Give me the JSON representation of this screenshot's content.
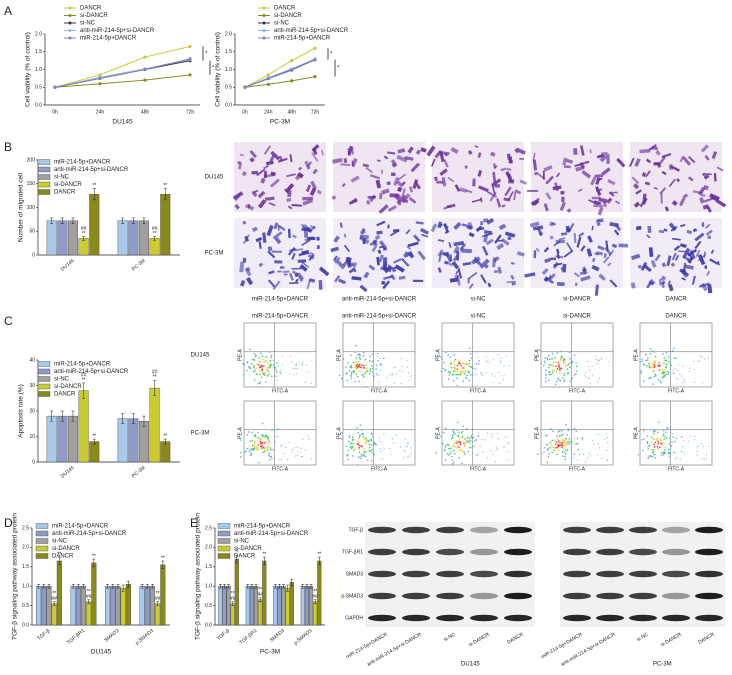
{
  "panels": {
    "letters": [
      "A",
      "B",
      "C",
      "D",
      "E"
    ]
  },
  "chart_data": [
    {
      "type": "line",
      "x_label": "DU145",
      "y_label": "Cell viability (% of control)",
      "categories": [
        "0h",
        "24h",
        "48h",
        "72h"
      ],
      "ylim": [
        0,
        2
      ],
      "yticks": [
        {
          "value": 0,
          "label": "0.0"
        },
        {
          "value": 0.5,
          "label": "0.5"
        },
        {
          "value": 1,
          "label": "1.0"
        },
        {
          "value": 1.5,
          "label": "1.5"
        },
        {
          "value": 2,
          "label": "2.0"
        }
      ],
      "series": [
        {
          "name": "DANCR",
          "color": "#c8c83c",
          "values": [
            0.5,
            0.85,
            1.35,
            1.65
          ]
        },
        {
          "name": "si-DANCR",
          "color": "#8c8c28",
          "values": [
            0.5,
            0.6,
            0.7,
            0.85
          ]
        },
        {
          "name": "si-NC",
          "color": "#333333",
          "values": [
            0.5,
            0.75,
            1.0,
            1.25
          ]
        },
        {
          "name": "anti-miR-214-5p+si-DANCR",
          "color": "#8fb8e8",
          "values": [
            0.5,
            0.78,
            1.02,
            1.28
          ]
        },
        {
          "name": "miR-214-5p+DANCR",
          "color": "#8080c0",
          "values": [
            0.5,
            0.75,
            1.0,
            1.3
          ]
        }
      ],
      "annotations": [
        "*",
        "*"
      ]
    },
    {
      "type": "line",
      "x_label": "PC-3M",
      "y_label": "Cell viability (% of control)",
      "categories": [
        "0h",
        "24h",
        "48h",
        "72h"
      ],
      "ylim": [
        0,
        2
      ],
      "yticks": [
        {
          "value": 0,
          "label": "0.0"
        },
        {
          "value": 0.5,
          "label": "0.5"
        },
        {
          "value": 1,
          "label": "1.0"
        },
        {
          "value": 1.5,
          "label": "1.5"
        },
        {
          "value": 2,
          "label": "2.0"
        }
      ],
      "series": [
        {
          "name": "DANCR",
          "color": "#c8c83c",
          "values": [
            0.5,
            0.85,
            1.25,
            1.6
          ]
        },
        {
          "name": "si-DANCR",
          "color": "#8c8c28",
          "values": [
            0.5,
            0.58,
            0.68,
            0.8
          ]
        },
        {
          "name": "si-NC",
          "color": "#333333",
          "values": [
            0.5,
            0.75,
            1.0,
            1.28
          ]
        },
        {
          "name": "anti-miR-214-5p+si-DANCR",
          "color": "#8fb8e8",
          "values": [
            0.5,
            0.77,
            1.02,
            1.3
          ]
        },
        {
          "name": "miR-214-5p+DANCR",
          "color": "#8080c0",
          "values": [
            0.5,
            0.74,
            0.98,
            1.27
          ]
        }
      ],
      "annotations": [
        "*",
        "*"
      ]
    },
    {
      "type": "bar",
      "y_label": "Number of migrated cell",
      "categories": [
        "DU145",
        "PC-3M"
      ],
      "ylim": [
        0,
        200
      ],
      "yticks": [
        0,
        50,
        100,
        150,
        200
      ],
      "series": [
        {
          "name": "miR-214-5p+DANCR",
          "color": "#a8c8ec",
          "values": [
            72,
            72
          ],
          "errors": [
            6,
            6
          ]
        },
        {
          "name": "anti-miR-214-5p+si-DANCR",
          "color": "#8e9cc8",
          "values": [
            72,
            72
          ],
          "errors": [
            6,
            6
          ]
        },
        {
          "name": "si-NC",
          "color": "#a0a0a0",
          "values": [
            72,
            72
          ],
          "errors": [
            6,
            6
          ]
        },
        {
          "name": "si-DANCR",
          "color": "#cccc30",
          "values": [
            35,
            35
          ],
          "errors": [
            4,
            4
          ],
          "sig": [
            [
              "##",
              "**"
            ],
            [
              "##",
              "**"
            ]
          ]
        },
        {
          "name": "DANCR",
          "color": "#8a8a1a",
          "values": [
            128,
            128
          ],
          "errors": [
            12,
            12
          ],
          "sig": [
            [
              "**"
            ],
            [
              "**"
            ]
          ]
        }
      ]
    },
    {
      "type": "bar",
      "y_label": "Apoptosis rate (%)",
      "categories": [
        "DU145",
        "PC-3M"
      ],
      "ylim": [
        0,
        40
      ],
      "yticks": [
        0,
        10,
        20,
        30,
        40
      ],
      "series": [
        {
          "name": "miR-214-5p+DANCR",
          "color": "#a8c8ec",
          "values": [
            18,
            17
          ],
          "errors": [
            2,
            2
          ]
        },
        {
          "name": "anti-miR-214-5p+si-DANCR",
          "color": "#8e9cc8",
          "values": [
            18,
            17
          ],
          "errors": [
            2,
            2
          ]
        },
        {
          "name": "si-NC",
          "color": "#a0a0a0",
          "values": [
            18,
            16
          ],
          "errors": [
            2,
            2
          ]
        },
        {
          "name": "si-DANCR",
          "color": "#cccc30",
          "values": [
            28,
            29
          ],
          "errors": [
            3,
            3
          ],
          "sig": [
            [
              "##",
              "**"
            ],
            [
              "##",
              "**"
            ]
          ]
        },
        {
          "name": "DANCR",
          "color": "#8a8a1a",
          "values": [
            8,
            8
          ],
          "errors": [
            1,
            1
          ],
          "sig": [
            [
              "**"
            ],
            [
              "**"
            ]
          ]
        }
      ]
    },
    {
      "type": "bar",
      "x_label": "DU145",
      "y_label": "TGF-β signaling pathway associated protein",
      "categories": [
        "TGF-β",
        "TGF-βR1",
        "SMAD3",
        "p-SMAD3"
      ],
      "ylim": [
        0,
        2.5
      ],
      "yticks": [
        {
          "value": 0,
          "label": "0.0"
        },
        {
          "value": 0.5,
          "label": "0.5"
        },
        {
          "value": 1,
          "label": "1.0"
        },
        {
          "value": 1.5,
          "label": "1.5"
        },
        {
          "value": 2,
          "label": "2.0"
        },
        {
          "value": 2.5,
          "label": "2.5"
        }
      ],
      "series": [
        {
          "name": "miR-214-5p+DANCR",
          "color": "#a8c8ec",
          "values": [
            1,
            1,
            1,
            1
          ],
          "errors": [
            0.05,
            0.05,
            0.05,
            0.05
          ]
        },
        {
          "name": "anti-miR-214-5p+si-DANCR",
          "color": "#8e9cc8",
          "values": [
            1,
            1,
            1,
            1
          ],
          "errors": [
            0.05,
            0.05,
            0.05,
            0.05
          ]
        },
        {
          "name": "si-NC",
          "color": "#a0a0a0",
          "values": [
            1,
            1,
            1,
            1
          ],
          "errors": [
            0.05,
            0.05,
            0.05,
            0.05
          ]
        },
        {
          "name": "si-DANCR",
          "color": "#cccc30",
          "values": [
            0.55,
            0.6,
            0.95,
            0.55
          ],
          "errors": [
            0.05,
            0.05,
            0.08,
            0.05
          ],
          "sig": [
            [
              "**",
              "##"
            ],
            [
              "**",
              "##"
            ],
            null,
            [
              "**",
              "##"
            ]
          ]
        },
        {
          "name": "DANCR",
          "color": "#8a8a1a",
          "values": [
            1.65,
            1.6,
            1.05,
            1.55
          ],
          "errors": [
            0.1,
            0.1,
            0.08,
            0.1
          ],
          "sig": [
            [
              "**"
            ],
            [
              "**"
            ],
            null,
            [
              "**"
            ]
          ]
        }
      ]
    },
    {
      "type": "bar",
      "x_label": "PC-3M",
      "y_label": "TGF-β signaling pathway associated protein",
      "categories": [
        "TGF-β",
        "TGF-βR1",
        "SMAD3",
        "p-SMAD3"
      ],
      "ylim": [
        0,
        2.5
      ],
      "yticks": [
        {
          "value": 0,
          "label": "0.0"
        },
        {
          "value": 0.5,
          "label": "0.5"
        },
        {
          "value": 1,
          "label": "1.0"
        },
        {
          "value": 1.5,
          "label": "1.5"
        },
        {
          "value": 2,
          "label": "2.0"
        },
        {
          "value": 2.5,
          "label": "2.5"
        }
      ],
      "series": [
        {
          "name": "miR-214-5p+DANCR",
          "color": "#a8c8ec",
          "values": [
            1,
            1,
            1,
            1
          ],
          "errors": [
            0.05,
            0.05,
            0.05,
            0.05
          ]
        },
        {
          "name": "anti-miR-214-5p+si-DANCR",
          "color": "#8e9cc8",
          "values": [
            1,
            1,
            1,
            1
          ],
          "errors": [
            0.05,
            0.05,
            0.05,
            0.05
          ]
        },
        {
          "name": "si-NC",
          "color": "#a0a0a0",
          "values": [
            1,
            1,
            1,
            1
          ],
          "errors": [
            0.05,
            0.05,
            0.05,
            0.05
          ]
        },
        {
          "name": "si-DANCR",
          "color": "#cccc30",
          "values": [
            0.55,
            0.65,
            0.95,
            0.6
          ],
          "errors": [
            0.05,
            0.05,
            0.08,
            0.05
          ],
          "sig": [
            [
              "**",
              "##"
            ],
            [
              "**",
              "##"
            ],
            null,
            [
              "**",
              "##"
            ]
          ]
        },
        {
          "name": "DANCR",
          "color": "#8a8a1a",
          "values": [
            1.7,
            1.65,
            1.1,
            1.65
          ],
          "errors": [
            0.1,
            0.1,
            0.08,
            0.1
          ],
          "sig": [
            [
              "**"
            ],
            [
              "**"
            ],
            null,
            [
              "**"
            ]
          ]
        }
      ]
    }
  ],
  "images": {
    "migration": {
      "rows": [
        "DU145",
        "PC-3M"
      ],
      "columns": [
        "miR-214-5p+DANCR",
        "anti-miR-214-5p+si-DANCR",
        "si-NC",
        "si-DANCR",
        "DANCR"
      ]
    },
    "flow": {
      "rows": [
        "DU145",
        "PC-3M"
      ],
      "columns": [
        "miR-214-5p+DANCR",
        "anti-miR-214-5p+si-DANCR",
        "si-NC",
        "si-DANCR",
        "DANCR"
      ],
      "y_axis": "PE-A",
      "x_axis": "FITC-A"
    },
    "western": {
      "rows": [
        "TGF-β",
        "TGF-βR1",
        "SMAD3",
        "p-SMAD3",
        "GAPDH"
      ],
      "columns": [
        "miR-214-5p+DANCR",
        "anti-miR-214-5p+si-DANCR",
        "si-NC",
        "si-DANCR",
        "DANCR"
      ],
      "groups": [
        "DU145",
        "PC-3M"
      ]
    }
  }
}
